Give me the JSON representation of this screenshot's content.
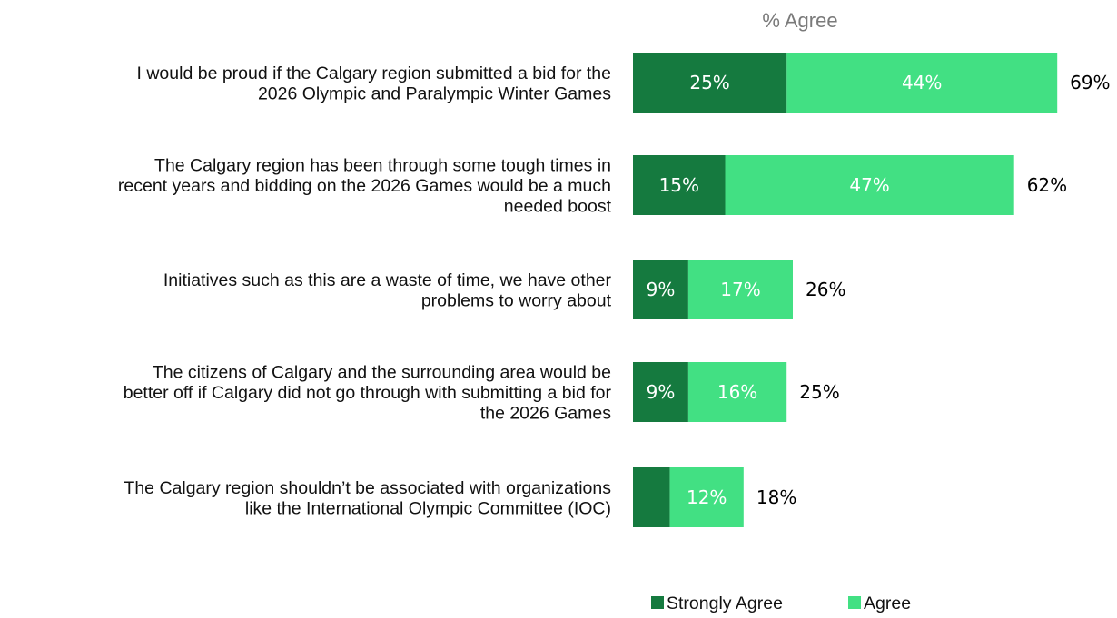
{
  "chart_data": {
    "type": "bar",
    "orientation": "horizontal",
    "stacked": true,
    "title": "% Agree",
    "categories": [
      [
        "I would be proud if the Calgary region submitted a bid for the",
        "2026 Olympic and Paralympic Winter Games"
      ],
      [
        "The Calgary region has been through some tough times in",
        "recent years and bidding on the 2026 Games would be a much",
        "needed boost"
      ],
      [
        "Initiatives such as this are a waste of time, we have other",
        "problems to worry about"
      ],
      [
        "The citizens of Calgary and the surrounding area would be",
        "better off if Calgary did not go through with submitting a bid for",
        "the 2026 Games"
      ],
      [
        "The Calgary region shouldn’t be associated with organizations",
        "like the International Olympic Committee (IOC)"
      ]
    ],
    "series": [
      {
        "name": "Strongly Agree",
        "color": "#157a3f",
        "values": [
          25,
          15,
          9,
          9,
          6
        ],
        "labels": [
          "25%",
          "15%",
          "9%",
          "9%",
          ""
        ]
      },
      {
        "name": "Agree",
        "color": "#42e083",
        "values": [
          44,
          47,
          17,
          16,
          12
        ],
        "labels": [
          "44%",
          "47%",
          "17%",
          "16%",
          "12%"
        ]
      }
    ],
    "totals": [
      "69%",
      "62%",
      "26%",
      "25%",
      "18%"
    ],
    "legend_position": "bottom-right",
    "grid": false
  }
}
